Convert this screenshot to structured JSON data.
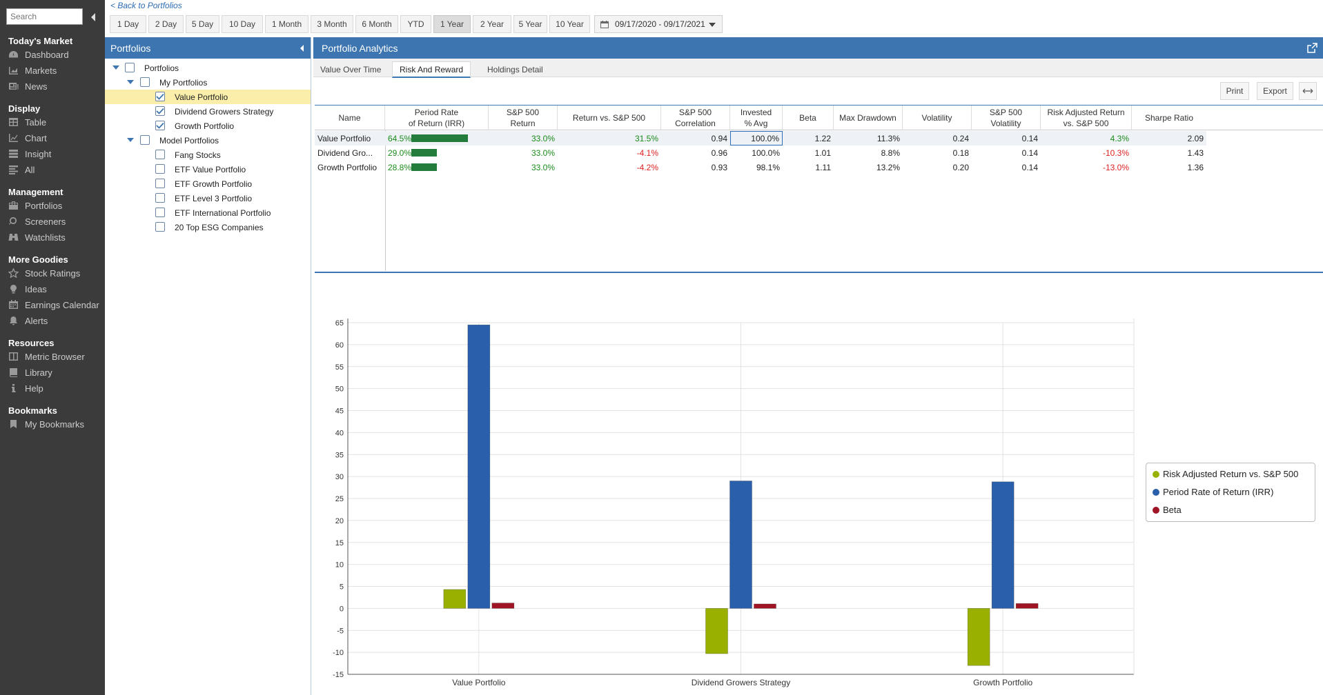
{
  "sidebar": {
    "search_placeholder": "Search",
    "sections": [
      {
        "title": "Today's Market",
        "items": [
          {
            "label": "Dashboard",
            "icon": "dashboard-icon"
          },
          {
            "label": "Markets",
            "icon": "markets-icon"
          },
          {
            "label": "News",
            "icon": "news-icon"
          }
        ]
      },
      {
        "title": "Display",
        "items": [
          {
            "label": "Table",
            "icon": "table-icon"
          },
          {
            "label": "Chart",
            "icon": "chart-icon"
          },
          {
            "label": "Insight",
            "icon": "insight-icon"
          },
          {
            "label": "All",
            "icon": "all-icon"
          }
        ]
      },
      {
        "title": "Management",
        "items": [
          {
            "label": "Portfolios",
            "icon": "portfolios-icon"
          },
          {
            "label": "Screeners",
            "icon": "search-icon"
          },
          {
            "label": "Watchlists",
            "icon": "binoculars-icon"
          }
        ]
      },
      {
        "title": "More Goodies",
        "items": [
          {
            "label": "Stock Ratings",
            "icon": "star-icon"
          },
          {
            "label": "Ideas",
            "icon": "lightbulb-icon"
          },
          {
            "label": "Earnings Calendar",
            "icon": "calendar-icon"
          },
          {
            "label": "Alerts",
            "icon": "bell-icon"
          }
        ]
      },
      {
        "title": "Resources",
        "items": [
          {
            "label": "Metric Browser",
            "icon": "metric-browser-icon"
          },
          {
            "label": "Library",
            "icon": "book-icon"
          },
          {
            "label": "Help",
            "icon": "info-icon"
          }
        ]
      },
      {
        "title": "Bookmarks",
        "items": [
          {
            "label": "My Bookmarks",
            "icon": "bookmark-icon"
          }
        ]
      }
    ]
  },
  "topbar": {
    "back_link": "< Back to Portfolios",
    "periods": [
      "1 Day",
      "2 Day",
      "5 Day",
      "10 Day",
      "1 Month",
      "3 Month",
      "6 Month",
      "YTD",
      "1 Year",
      "2 Year",
      "5 Year",
      "10 Year"
    ],
    "active_period": "1 Year",
    "date_range": "09/17/2020 - 09/17/2021"
  },
  "portfolios_panel": {
    "title": "Portfolios",
    "tree": {
      "root": "Portfolios",
      "my_portfolios": "My Portfolios",
      "my_items": [
        "Value Portfolio",
        "Dividend Growers Strategy",
        "Growth Portfolio"
      ],
      "model_portfolios": "Model Portfolios",
      "model_items": [
        "Fang Stocks",
        "ETF Value Portfolio",
        "ETF Growth Portfolio",
        "ETF Level 3 Portfolio",
        "ETF International Portfolio",
        "20 Top ESG Companies"
      ]
    }
  },
  "analytics": {
    "title": "Portfolio Analytics",
    "tabs": [
      "Value Over Time",
      "Risk And Reward",
      "Holdings Detail"
    ],
    "active_tab": "Risk And Reward",
    "print_label": "Print",
    "export_label": "Export",
    "columns": [
      "Name",
      "Period Rate\nof Return (IRR)",
      "S&P 500\nReturn",
      "Return vs. S&P 500",
      "S&P 500\nCorrelation",
      "Invested\n% Avg",
      "Beta",
      "Max Drawdown",
      "Volatility",
      "S&P 500\nVolatility",
      "Risk Adjusted Return\nvs. S&P 500",
      "Sharpe Ratio"
    ],
    "rows": [
      {
        "name": "Value Portfolio",
        "irr": "64.5%",
        "irr_fraction": 1.0,
        "sp_return": "33.0%",
        "vs_sp": "31.5%",
        "vs_sign": "pos",
        "correlation": "0.94",
        "invested": "100.0%",
        "beta": "1.22",
        "max_drawdown": "11.3%",
        "volatility": "0.24",
        "sp_volatility": "0.14",
        "risk_adj": "4.3%",
        "risk_sign": "pos",
        "sharpe": "2.09"
      },
      {
        "name": "Dividend Gro...",
        "irr": "29.0%",
        "irr_fraction": 0.45,
        "sp_return": "33.0%",
        "vs_sp": "-4.1%",
        "vs_sign": "neg",
        "correlation": "0.96",
        "invested": "100.0%",
        "beta": "1.01",
        "max_drawdown": "8.8%",
        "volatility": "0.18",
        "sp_volatility": "0.14",
        "risk_adj": "-10.3%",
        "risk_sign": "neg",
        "sharpe": "1.43"
      },
      {
        "name": "Growth Portfolio",
        "irr": "28.8%",
        "irr_fraction": 0.45,
        "sp_return": "33.0%",
        "vs_sp": "-4.2%",
        "vs_sign": "neg",
        "correlation": "0.93",
        "invested": "98.1%",
        "beta": "1.11",
        "max_drawdown": "13.2%",
        "volatility": "0.20",
        "sp_volatility": "0.14",
        "risk_adj": "-13.0%",
        "risk_sign": "neg",
        "sharpe": "1.36"
      }
    ]
  },
  "colors": {
    "header_blue": "#3c75b0",
    "sidebar_bg": "#3b3b3b",
    "positive": "#1a8a1a",
    "negative": "#e02020",
    "irr_bar": "#237c3c",
    "selected_row": "#fbeeaa"
  },
  "chart_data": {
    "type": "bar",
    "categories": [
      "Value Portfolio",
      "Dividend Growers Strategy",
      "Growth Portfolio"
    ],
    "series": [
      {
        "name": "Risk Adjusted Return vs. S&P 500",
        "color": "#9ab000",
        "values": [
          4.3,
          -10.3,
          -13.0
        ]
      },
      {
        "name": "Period Rate of Return (IRR)",
        "color": "#2a5fab",
        "values": [
          64.5,
          29.0,
          28.8
        ]
      },
      {
        "name": "Beta",
        "color": "#a01525",
        "values": [
          1.22,
          1.01,
          1.11
        ]
      }
    ],
    "ylim": [
      -15,
      65
    ],
    "yticks": [
      65,
      60,
      55,
      50,
      45,
      40,
      35,
      30,
      25,
      20,
      15,
      10,
      5,
      0,
      -5,
      -10,
      -15
    ],
    "grid": true,
    "legend_position": "right"
  }
}
